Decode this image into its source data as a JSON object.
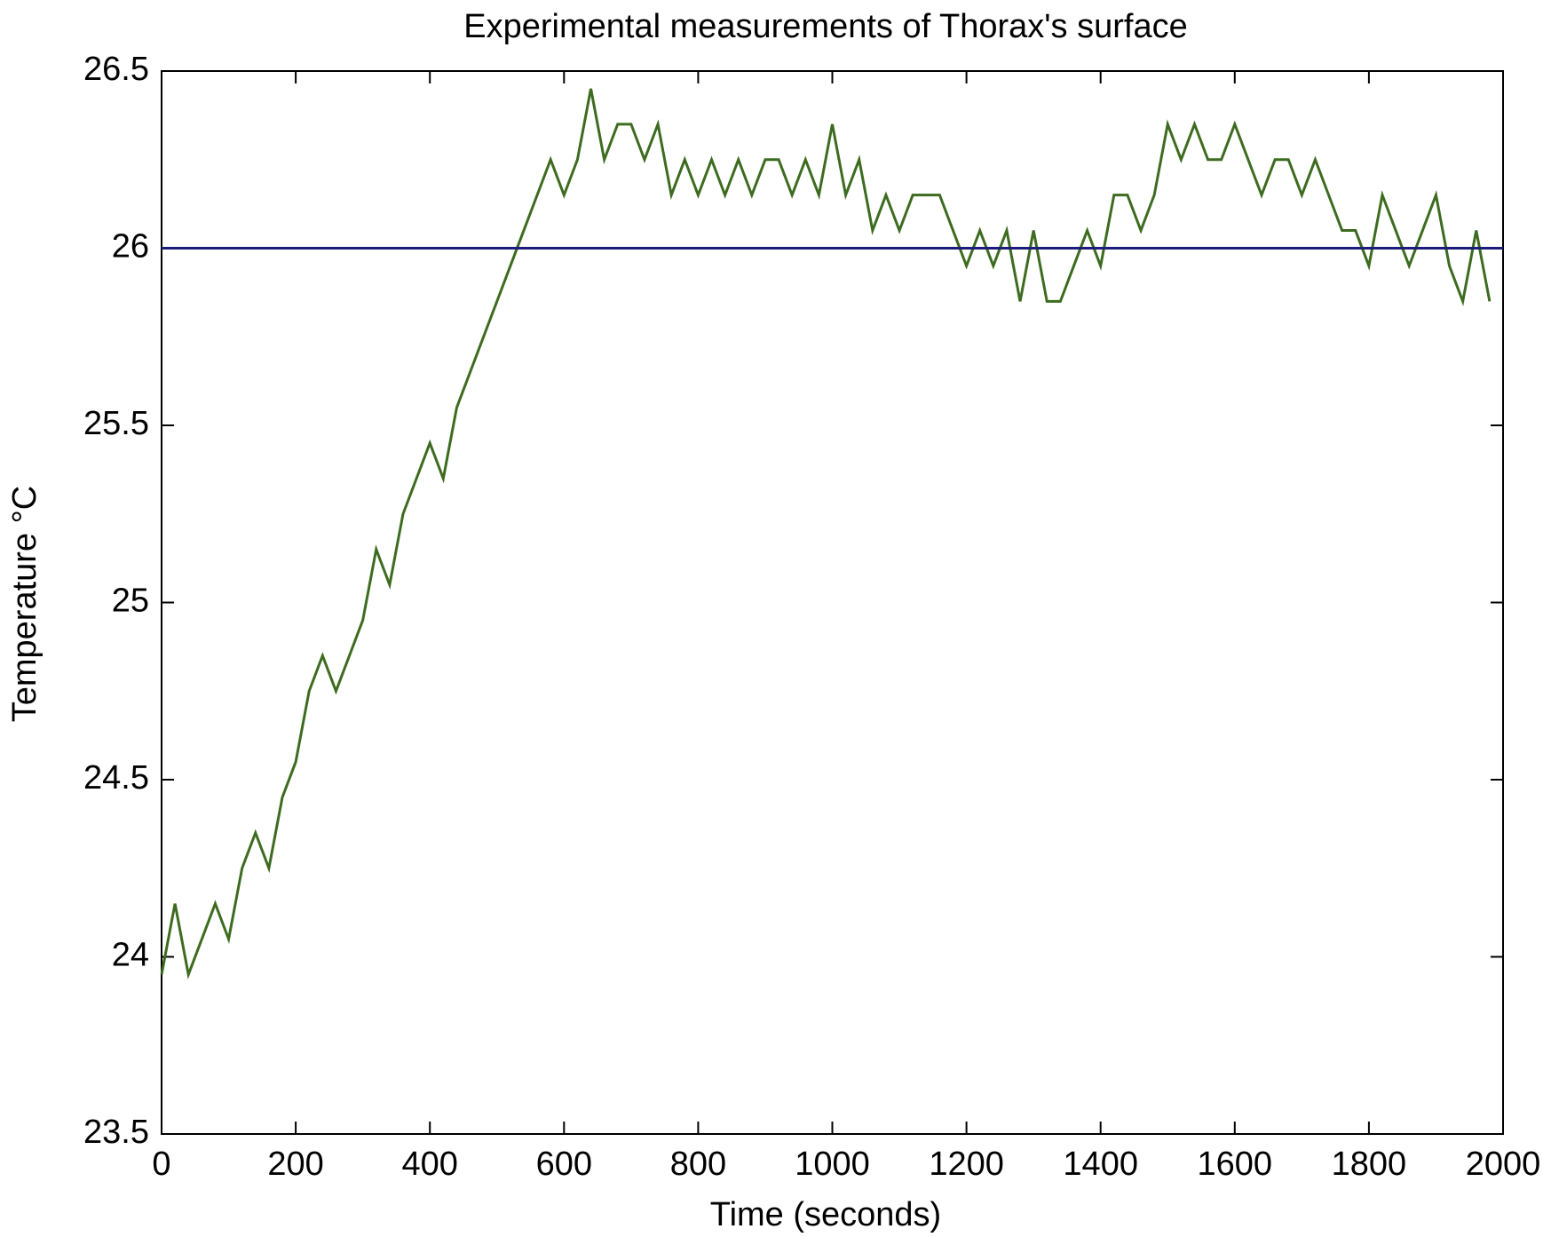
{
  "chart_data": {
    "type": "line",
    "title": "Experimental measurements of Thorax's surface",
    "xlabel": "Time (seconds)",
    "ylabel": "Temperature °C",
    "xlim": [
      0,
      2000
    ],
    "xticks": [
      0,
      200,
      400,
      600,
      800,
      1000,
      1200,
      1400,
      1600,
      1800,
      2000
    ],
    "ylim": [
      23.5,
      26.5
    ],
    "yticks": [
      23.5,
      24,
      24.5,
      25,
      25.5,
      26,
      26.5
    ],
    "grid": false,
    "series": [
      {
        "color": "#3d6b1f",
        "x": [
          0,
          20,
          40,
          60,
          80,
          100,
          120,
          140,
          160,
          180,
          200,
          220,
          240,
          260,
          280,
          300,
          320,
          340,
          360,
          380,
          400,
          420,
          440,
          460,
          480,
          500,
          520,
          540,
          560,
          580,
          600,
          620,
          640,
          660,
          680,
          700,
          720,
          740,
          760,
          780,
          800,
          820,
          840,
          860,
          880,
          900,
          920,
          940,
          960,
          980,
          1000,
          1020,
          1040,
          1060,
          1080,
          1100,
          1120,
          1140,
          1160,
          1180,
          1200,
          1220,
          1240,
          1260,
          1280,
          1300,
          1320,
          1340,
          1360,
          1380,
          1400,
          1420,
          1440,
          1460,
          1480,
          1500,
          1520,
          1540,
          1560,
          1580,
          1600,
          1620,
          1640,
          1660,
          1680,
          1700,
          1720,
          1740,
          1760,
          1780,
          1800,
          1820,
          1840,
          1860,
          1880,
          1900,
          1920,
          1940,
          1960,
          1980
        ],
        "values": [
          23.95,
          24.15,
          23.95,
          24.05,
          24.15,
          24.05,
          24.25,
          24.35,
          24.25,
          24.45,
          24.55,
          24.75,
          24.85,
          24.75,
          24.85,
          24.95,
          25.15,
          25.05,
          25.25,
          25.35,
          25.45,
          25.35,
          25.55,
          25.65,
          25.75,
          25.85,
          25.95,
          26.05,
          26.15,
          26.25,
          26.15,
          26.25,
          26.45,
          26.25,
          26.35,
          26.35,
          26.25,
          26.35,
          26.15,
          26.25,
          26.15,
          26.25,
          26.15,
          26.25,
          26.15,
          26.25,
          26.25,
          26.15,
          26.25,
          26.15,
          26.35,
          26.15,
          26.25,
          26.05,
          26.15,
          26.05,
          26.15,
          26.15,
          26.15,
          26.05,
          25.95,
          26.05,
          25.95,
          26.05,
          25.85,
          26.05,
          25.85,
          25.85,
          25.95,
          26.05,
          25.95,
          26.15,
          26.15,
          26.05,
          26.15,
          26.35,
          26.25,
          26.35,
          26.25,
          26.25,
          26.35,
          26.25,
          26.15,
          26.25,
          26.25,
          26.15,
          26.25,
          26.15,
          26.05,
          26.05,
          25.95,
          26.15,
          26.05,
          25.95,
          26.05,
          26.15,
          25.95,
          25.85,
          26.05,
          25.85
        ]
      },
      {
        "color": "#1c1c7a",
        "x": [
          0,
          2000
        ],
        "values": [
          26.0,
          26.0
        ]
      }
    ]
  }
}
